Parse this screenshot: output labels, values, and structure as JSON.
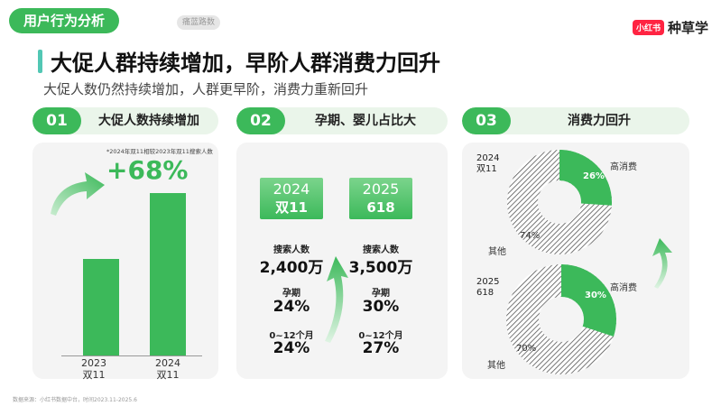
{
  "header": {
    "tag": "用户行为分析",
    "tag_sub": "痛蓝路数",
    "brand_logo": "小红书",
    "brand_name": "种草学"
  },
  "title": "大促人群持续增加，早阶人群消费力回升",
  "subtitle": "大促人数仍然持续增加，人群更早阶，消费力重新回升",
  "sections": [
    {
      "num": "01",
      "title": "大促人数持续增加"
    },
    {
      "num": "02",
      "title": "孕期、婴儿占比大"
    },
    {
      "num": "03",
      "title": "消费力回升"
    }
  ],
  "panel1": {
    "note": "*2024年双11相较2023年双11搜索人数",
    "growth": "+68%",
    "bars": [
      {
        "label_year": "2023",
        "label_event": "双11",
        "value": 1.0
      },
      {
        "label_year": "2024",
        "label_event": "双11",
        "value": 1.68
      }
    ]
  },
  "panel2": {
    "columns": [
      {
        "year": "2024",
        "event": "双11",
        "search_label": "搜索人数",
        "search_value": "2,400万",
        "pregnancy_label": "孕期",
        "pregnancy_value": "24%",
        "infant_label": "0~12个月",
        "infant_value": "24%"
      },
      {
        "year": "2025",
        "event": "618",
        "search_label": "搜索人数",
        "search_value": "3,500万",
        "pregnancy_label": "孕期",
        "pregnancy_value": "30%",
        "infant_label": "0~12个月",
        "infant_value": "27%"
      }
    ]
  },
  "panel3": {
    "donuts": [
      {
        "year": "2024",
        "event": "双11",
        "high_label": "高消费",
        "high_value": "26%",
        "high_pct": 26,
        "other_label": "其他",
        "other_value": "74%"
      },
      {
        "year": "2025",
        "event": "618",
        "high_label": "高消费",
        "high_value": "30%",
        "high_pct": 30,
        "other_label": "其他",
        "other_value": "70%"
      }
    ]
  },
  "footnote": "数据来源：小红书数据中台，时间2023.11-2025.6",
  "colors": {
    "accent": "#3cb95a",
    "accent_light": "#eaf5ea",
    "title_bar": "#52c7b4",
    "brand_red": "#ff2442"
  }
}
